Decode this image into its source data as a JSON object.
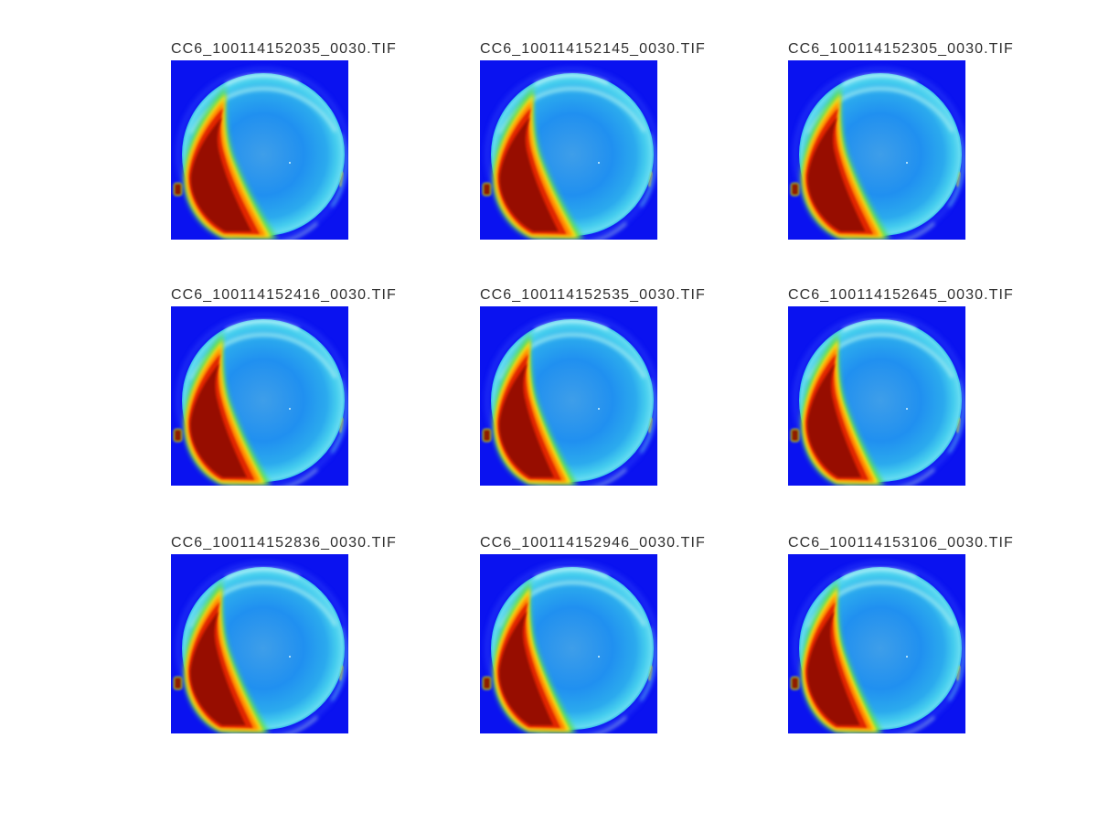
{
  "figure": {
    "background": "#ffffff",
    "grid": {
      "rows": 3,
      "cols": 3
    }
  },
  "panels": [
    {
      "title": "CC6_100114152035_0030.TIF",
      "crescent_scale": 1.0
    },
    {
      "title": "CC6_100114152145_0030.TIF",
      "crescent_scale": 0.97
    },
    {
      "title": "CC6_100114152305_0030.TIF",
      "crescent_scale": 0.95
    },
    {
      "title": "CC6_100114152416_0030.TIF",
      "crescent_scale": 0.93
    },
    {
      "title": "CC6_100114152535_0030.TIF",
      "crescent_scale": 0.9
    },
    {
      "title": "CC6_100114152645_0030.TIF",
      "crescent_scale": 0.89
    },
    {
      "title": "CC6_100114152836_0030.TIF",
      "crescent_scale": 0.91
    },
    {
      "title": "CC6_100114152946_0030.TIF",
      "crescent_scale": 0.89
    },
    {
      "title": "CC6_100114153106_0030.TIF",
      "crescent_scale": 0.87
    }
  ],
  "colors": {
    "background_blue": "#0a12f0",
    "halo_blue": "#3347fa",
    "disc_center": "#3e9ee9",
    "disc_mid": "#2090f0",
    "disc_outer": "#2baaee",
    "disc_edge_cyan": "#44ccee",
    "disc_rim_cyan": "#63dbf1",
    "disc_rim_end": "#38beec",
    "rim_highlight": "#9feaf3",
    "rim_bright_dash": "#d6fafa",
    "rim_right_cyan": "#66ddf0",
    "rim_bottom_light": "#bfe9e2",
    "rim_yellow_dash": "#bfe34d",
    "crescent_green": "#58e058",
    "crescent_yellow": "#ffe008",
    "crescent_orange": "#ff7b00",
    "crescent_red": "#e02800",
    "crescent_dark_red": "#970d00",
    "notch_fill": "#8f1e00",
    "notch_edge": "#a8c838",
    "speck_white": "#e8ffff"
  },
  "chart_data": {
    "type": "heatmap",
    "title": "",
    "description_visible_content": "3x3 montage of false-color (jet colormap) frames; each frame shows a bright-blue background, a large cyan-blue disc, and a red/dark-red crescent with yellow-green fringe on the disc's lower-left edge",
    "panel_titles": [
      "CC6_100114152035_0030.TIF",
      "CC6_100114152145_0030.TIF",
      "CC6_100114152305_0030.TIF",
      "CC6_100114152416_0030.TIF",
      "CC6_100114152535_0030.TIF",
      "CC6_100114152645_0030.TIF",
      "CC6_100114152836_0030.TIF",
      "CC6_100114152946_0030.TIF",
      "CC6_100114153106_0030.TIF"
    ],
    "layout_hints": {
      "rows": 3,
      "cols": 3,
      "colormap": "jet",
      "axes": "hidden",
      "titles_left_aligned": true
    }
  }
}
